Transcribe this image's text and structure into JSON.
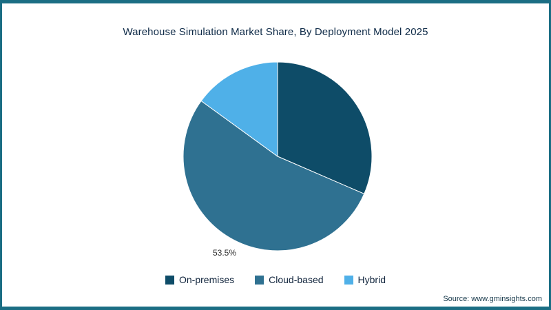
{
  "page": {
    "source": "Source: www.gminsights.com"
  },
  "chart_data": {
    "type": "pie",
    "title": "Warehouse Simulation Market Share, By Deployment Model 2025",
    "categories": [
      "On-premises",
      "Cloud-based",
      "Hybrid"
    ],
    "values": [
      31.5,
      53.5,
      15
    ],
    "colors": [
      "#0e4c68",
      "#2f7191",
      "#4fb0e8"
    ],
    "data_label": "53.5%",
    "data_label_for": "Cloud-based",
    "start_angle": "top",
    "direction": "clockwise",
    "legend_position": "bottom",
    "frame_color": "#1b6e84"
  }
}
